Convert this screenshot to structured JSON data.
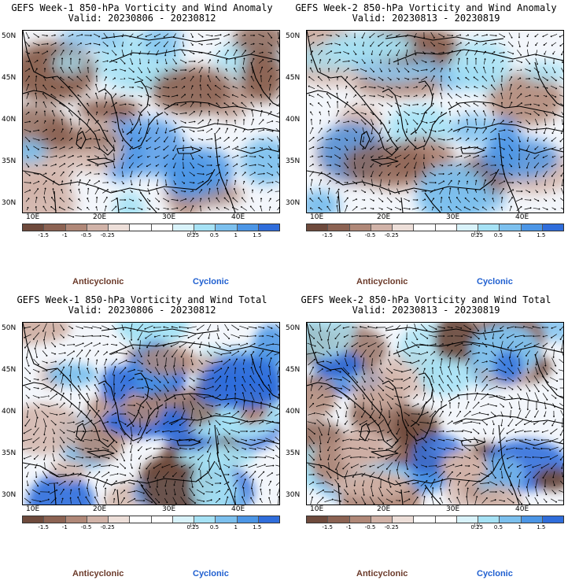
{
  "panels": [
    {
      "title": "GEFS Week-1 850-hPa Vorticity and Wind Anomaly",
      "valid": "Valid: 20230806 - 20230812",
      "mode": "anomaly",
      "seed": 3
    },
    {
      "title": "GEFS Week-2 850-hPa Vorticity and Wind Anomaly",
      "valid": "Valid: 20230813 - 20230819",
      "mode": "anomaly",
      "seed": 11
    },
    {
      "title": "GEFS Week-1 850-hPa Vorticity and Wind Total",
      "valid": "Valid: 20230806 - 20230812",
      "mode": "total",
      "seed": 21
    },
    {
      "title": "GEFS Week-2 850-hPa Vorticity and Wind Total",
      "valid": "Valid: 20230813 - 20230819",
      "mode": "total",
      "seed": 37
    }
  ],
  "lat_labels": [
    "50N",
    "45N",
    "40N",
    "35N",
    "30N"
  ],
  "lon_labels": [
    "10E",
    "20E",
    "30E",
    "40E"
  ],
  "colorbar": {
    "ticks": [
      "-1.5",
      "-1",
      "-0.5",
      "-0.25",
      "0.25",
      "0.5",
      "1",
      "1.5"
    ],
    "unit": "10",
    "colors": [
      "#6e4a3c",
      "#8c6353",
      "#b08878",
      "#d1b3a8",
      "#eddfd9",
      "#ffffff",
      "#ffffff",
      "#d9f3fb",
      "#a6e2f5",
      "#7cc0ee",
      "#4c96e6",
      "#2f6ddb"
    ]
  },
  "labels": {
    "anticyclonic": "Anticyclonic",
    "cyclonic": "Cyclonic"
  }
}
